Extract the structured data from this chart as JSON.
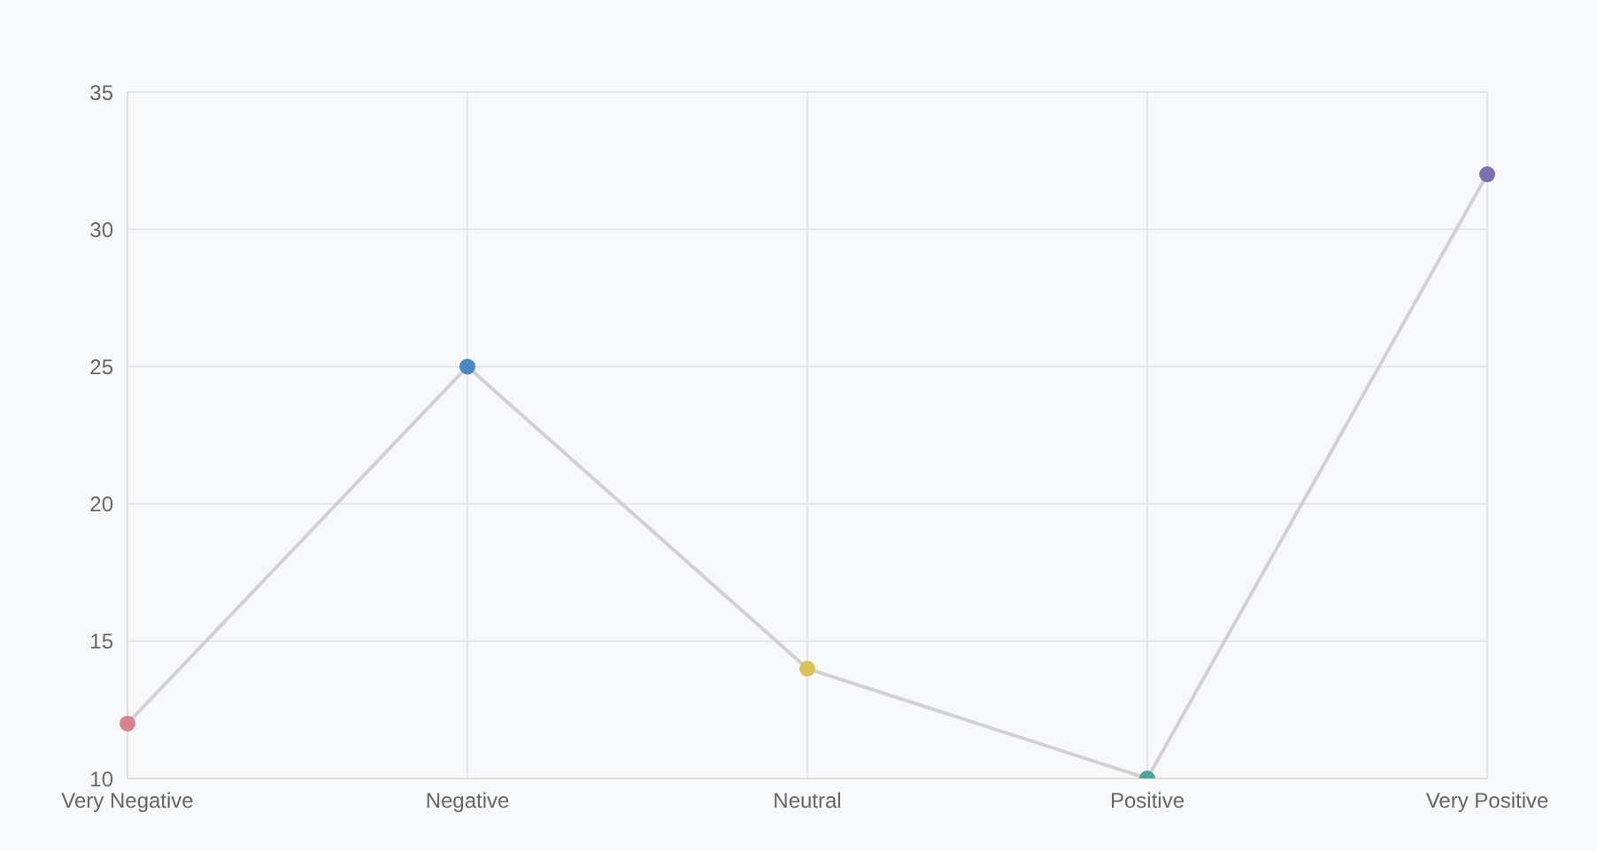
{
  "chart_data": {
    "type": "line",
    "categories": [
      "Very Negative",
      "Negative",
      "Neutral",
      "Positive",
      "Very Positive"
    ],
    "values": [
      12,
      25,
      14,
      10,
      32
    ],
    "color": "#d3d0d3",
    "colors": [
      "#d9828f",
      "#4b87c4",
      "#d9c25a",
      "#4fa59a",
      "#7b6fb0"
    ],
    "ylim": [
      10,
      35
    ],
    "yticks": [
      10,
      15,
      20,
      25,
      30,
      35
    ],
    "grid": true,
    "marker": "circle"
  }
}
